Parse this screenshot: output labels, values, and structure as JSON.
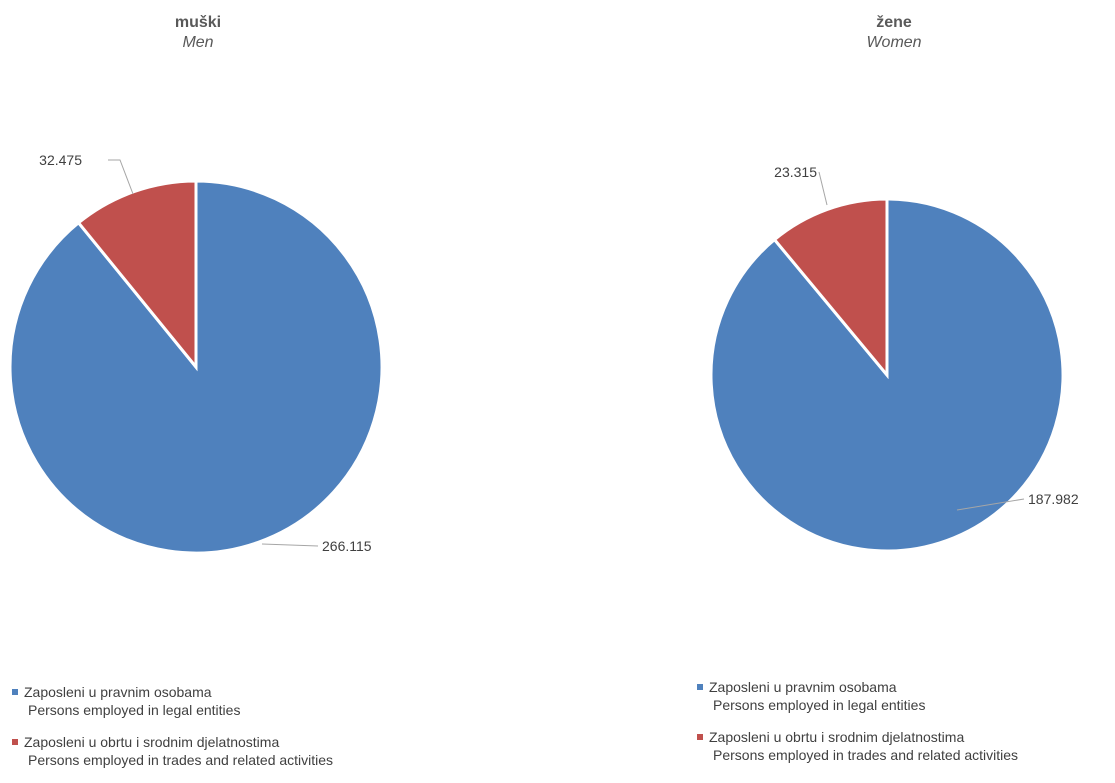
{
  "chart_data": [
    {
      "type": "pie",
      "title": "muški",
      "subtitle": "Men",
      "categories": [
        "Zaposleni u pravnim osobama / Persons employed in legal entities",
        "Zaposleni u obrtu i srodnim djelatnostima / Persons employed in trades and related activities"
      ],
      "values": [
        266115,
        32475
      ],
      "value_labels": [
        "266.115",
        "32.475"
      ],
      "colors": [
        "#4f81bd",
        "#c0504d"
      ],
      "legend": "bottom-left",
      "legend_entries": [
        {
          "hr": "Zaposleni u pravnim osobama",
          "en": "Persons employed in legal entities",
          "color": "#4f81bd"
        },
        {
          "hr": "Zaposleni u obrtu i srodnim djelatnostima",
          "en": "Persons employed in trades and related activities",
          "color": "#c0504d"
        }
      ]
    },
    {
      "type": "pie",
      "title": "žene",
      "subtitle": "Women",
      "categories": [
        "Zaposleni u pravnim osobama / Persons employed in legal entities",
        "Zaposleni u obrtu i srodnim djelatnostima / Persons employed in trades and related activities"
      ],
      "values": [
        187982,
        23315
      ],
      "value_labels": [
        "187.982",
        "23.315"
      ],
      "colors": [
        "#4f81bd",
        "#c0504d"
      ],
      "legend": "bottom-left",
      "legend_entries": [
        {
          "hr": "Zaposleni u pravnim osobama",
          "en": "Persons employed in legal entities",
          "color": "#4f81bd"
        },
        {
          "hr": "Zaposleni u obrtu i srodnim djelatnostima",
          "en": "Persons employed in trades and related activities",
          "color": "#c0504d"
        }
      ]
    }
  ]
}
